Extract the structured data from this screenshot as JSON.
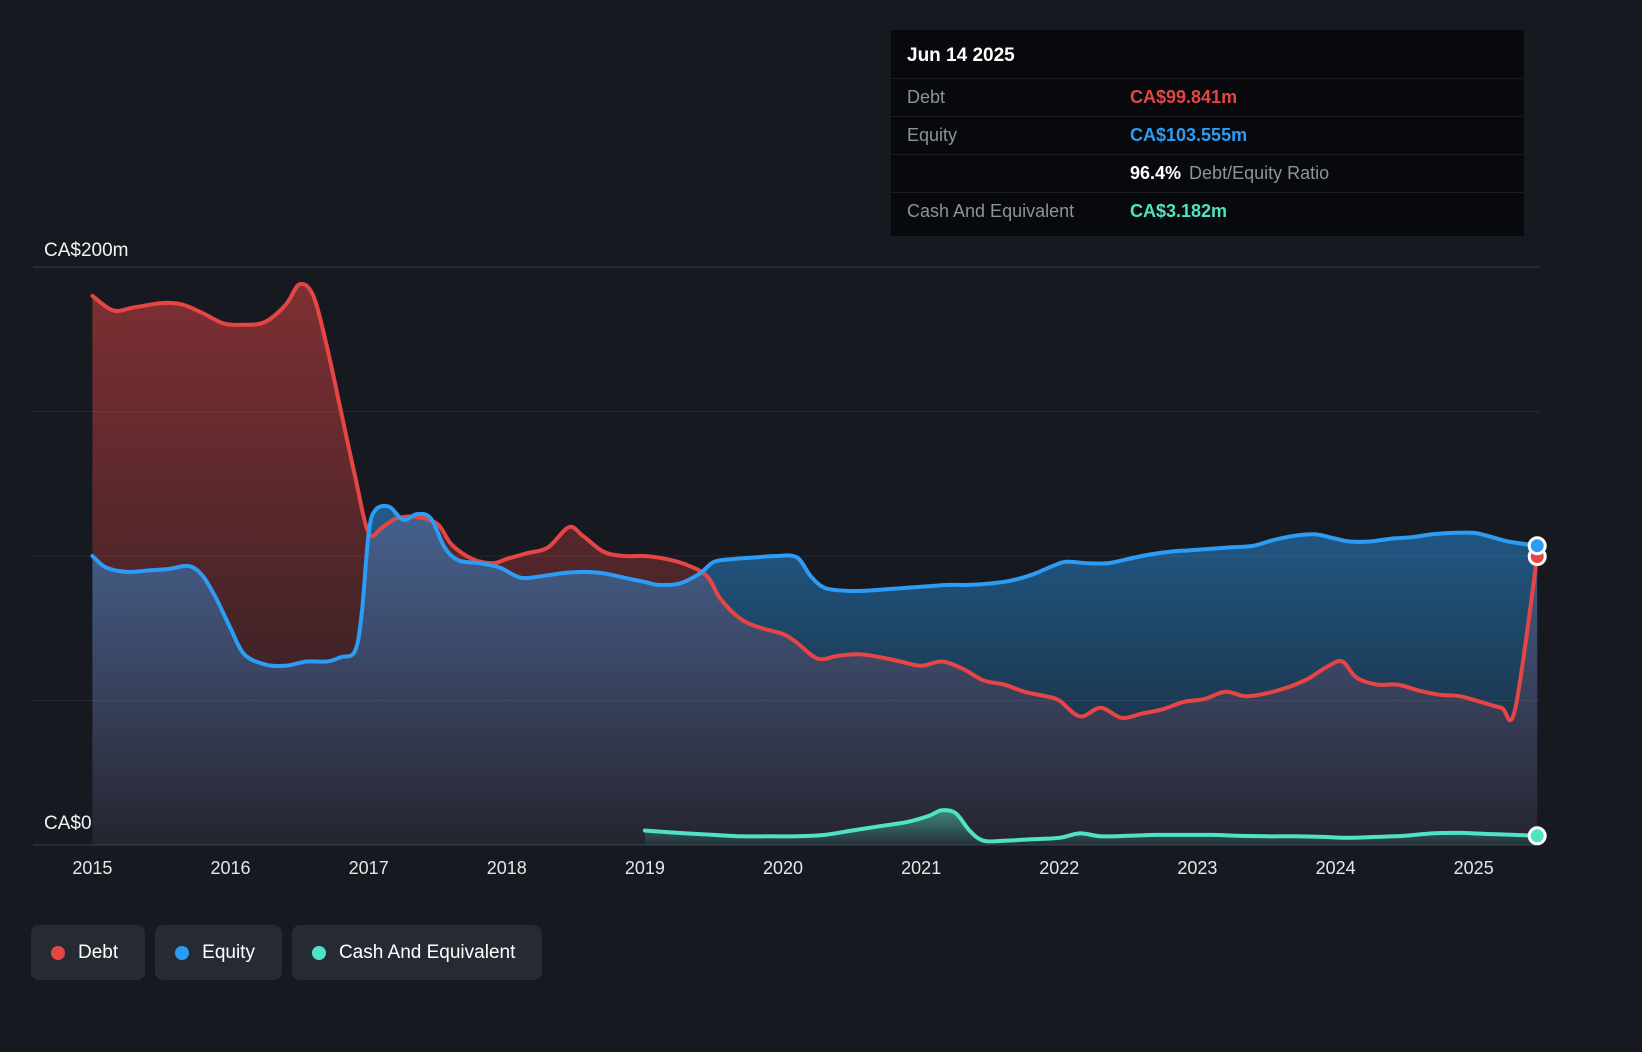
{
  "page": {
    "background": "#161a20"
  },
  "tooltip": {
    "date": "Jun 14 2025",
    "debt": {
      "label": "Debt",
      "value": "CA$99.841m"
    },
    "equity": {
      "label": "Equity",
      "value": "CA$103.555m"
    },
    "ratio": {
      "value": "96.4%",
      "label": "Debt/Equity Ratio"
    },
    "cash": {
      "label": "Cash And Equivalent",
      "value": "CA$3.182m"
    }
  },
  "axes": {
    "y_top_label": "CA$200m",
    "y_bottom_label": "CA$0"
  },
  "legend": {
    "items": [
      {
        "label": "Debt"
      },
      {
        "label": "Equity"
      },
      {
        "label": "Cash And Equivalent"
      }
    ]
  },
  "colors": {
    "debt": "#e64545",
    "equity": "#2d9cf4",
    "cash": "#4fe3c4",
    "background": "#161a20",
    "tooltip_background": "#07090c",
    "legend_background": "#262b33",
    "text_muted": "#8d939b",
    "text_primary": "#ffffff"
  },
  "chart_data": {
    "type": "area",
    "x_unit": "year",
    "xlim": [
      2014.57,
      2025.48
    ],
    "ylim": [
      0,
      200
    ],
    "y_gridlines": [
      0,
      50,
      100,
      150,
      200
    ],
    "x_ticks": [
      2015,
      2016,
      2017,
      2018,
      2019,
      2020,
      2021,
      2022,
      2023,
      2024,
      2025
    ],
    "grid": true,
    "legend_position": "bottom-left",
    "value_unit": "CA$ millions",
    "series": [
      {
        "name": "Debt",
        "color": "#e64545",
        "x": [
          2015.0,
          2015.15,
          2015.3,
          2015.5,
          2015.65,
          2015.8,
          2015.95,
          2016.1,
          2016.25,
          2016.4,
          2016.5,
          2016.6,
          2016.7,
          2016.8,
          2016.9,
          2017.0,
          2017.1,
          2017.2,
          2017.35,
          2017.5,
          2017.6,
          2017.75,
          2017.9,
          2018.0,
          2018.15,
          2018.3,
          2018.45,
          2018.55,
          2018.7,
          2018.85,
          2019.0,
          2019.15,
          2019.3,
          2019.45,
          2019.55,
          2019.7,
          2019.85,
          2020.0,
          2020.1,
          2020.25,
          2020.4,
          2020.55,
          2020.7,
          2020.85,
          2021.0,
          2021.15,
          2021.3,
          2021.45,
          2021.6,
          2021.75,
          2021.9,
          2022.0,
          2022.15,
          2022.3,
          2022.45,
          2022.6,
          2022.75,
          2022.9,
          2023.05,
          2023.2,
          2023.35,
          2023.5,
          2023.65,
          2023.8,
          2023.95,
          2024.05,
          2024.15,
          2024.3,
          2024.45,
          2024.6,
          2024.75,
          2024.9,
          2025.05,
          2025.2,
          2025.3,
          2025.46
        ],
        "values": [
          190,
          185,
          186,
          187.5,
          187,
          184,
          180.5,
          180,
          181,
          187,
          194,
          190,
          172,
          150,
          128,
          108,
          110,
          113,
          113.5,
          111,
          104,
          99,
          97.5,
          99,
          101,
          103,
          110,
          107,
          101.5,
          100,
          100,
          99,
          97,
          93,
          85,
          78,
          75,
          73,
          70,
          64.5,
          65.5,
          66,
          65,
          63.5,
          62,
          63.5,
          61,
          57,
          55.5,
          53,
          51.5,
          50,
          44.5,
          47.5,
          44,
          45.5,
          47,
          49.5,
          50.5,
          53,
          51.5,
          52.5,
          54.5,
          57.5,
          62,
          63.5,
          58,
          55.5,
          55.5,
          53.5,
          52,
          51.5,
          49.5,
          47.5,
          47,
          99.841
        ]
      },
      {
        "name": "Equity",
        "color": "#2d9cf4",
        "x": [
          2015.0,
          2015.1,
          2015.25,
          2015.4,
          2015.55,
          2015.7,
          2015.8,
          2015.9,
          2016.0,
          2016.1,
          2016.25,
          2016.4,
          2016.55,
          2016.7,
          2016.8,
          2016.9,
          2016.95,
          2017.0,
          2017.05,
          2017.15,
          2017.25,
          2017.35,
          2017.45,
          2017.55,
          2017.65,
          2017.8,
          2017.95,
          2018.1,
          2018.25,
          2018.4,
          2018.55,
          2018.7,
          2018.85,
          2019.0,
          2019.1,
          2019.25,
          2019.4,
          2019.5,
          2019.65,
          2019.8,
          2019.95,
          2020.1,
          2020.2,
          2020.3,
          2020.45,
          2020.6,
          2020.75,
          2020.9,
          2021.05,
          2021.2,
          2021.35,
          2021.5,
          2021.65,
          2021.8,
          2021.95,
          2022.05,
          2022.2,
          2022.35,
          2022.5,
          2022.65,
          2022.8,
          2022.95,
          2023.1,
          2023.25,
          2023.4,
          2023.55,
          2023.7,
          2023.85,
          2024.0,
          2024.1,
          2024.25,
          2024.4,
          2024.55,
          2024.7,
          2024.85,
          2025.0,
          2025.1,
          2025.25,
          2025.46
        ],
        "values": [
          100,
          96,
          94.5,
          95,
          95.5,
          96.5,
          93,
          85,
          75,
          66,
          62.5,
          62,
          63.5,
          63.5,
          65,
          67,
          80,
          108,
          116,
          117,
          112.5,
          114.5,
          113,
          103,
          98.5,
          97.5,
          96,
          92.5,
          93,
          94,
          94.5,
          94,
          92.5,
          91,
          90,
          90.5,
          94,
          98,
          99,
          99.5,
          100,
          99.5,
          93,
          89,
          88,
          88,
          88.5,
          89,
          89.5,
          90,
          90,
          90.5,
          91.5,
          93.5,
          96.5,
          98,
          97.5,
          97.5,
          99,
          100.5,
          101.5,
          102,
          102.5,
          103,
          103.5,
          105.5,
          107,
          107.5,
          106,
          105,
          105,
          106,
          106.5,
          107.5,
          108,
          108,
          107,
          105,
          103.555
        ]
      },
      {
        "name": "Cash And Equivalent",
        "color": "#4fe3c4",
        "x": [
          2019.0,
          2019.15,
          2019.3,
          2019.5,
          2019.7,
          2019.9,
          2020.1,
          2020.3,
          2020.5,
          2020.7,
          2020.9,
          2021.05,
          2021.15,
          2021.25,
          2021.35,
          2021.45,
          2021.6,
          2021.8,
          2022.0,
          2022.15,
          2022.3,
          2022.5,
          2022.7,
          2022.9,
          2023.1,
          2023.3,
          2023.5,
          2023.7,
          2023.9,
          2024.1,
          2024.3,
          2024.5,
          2024.7,
          2024.9,
          2025.1,
          2025.3,
          2025.46
        ],
        "values": [
          5,
          4.5,
          4,
          3.5,
          3,
          3,
          3,
          3.5,
          5,
          6.5,
          8,
          10,
          12,
          11,
          5,
          1.5,
          1.5,
          2,
          2.5,
          4,
          3,
          3.2,
          3.5,
          3.5,
          3.5,
          3.2,
          3,
          3,
          2.8,
          2.5,
          2.8,
          3.2,
          4,
          4.2,
          3.8,
          3.5,
          3.182
        ]
      }
    ]
  }
}
